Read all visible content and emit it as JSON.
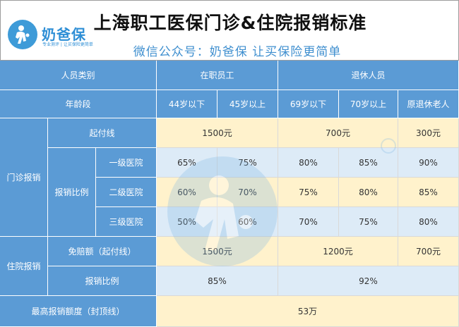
{
  "header": {
    "title": "上海职工医保门诊&住院报销标准",
    "subtitle": "微信公众号：奶爸保   让买保险更简单",
    "logo_name": "奶爸保",
    "logo_tagline": "专业测评 | 让买保险更简单"
  },
  "table": {
    "person_type_label": "人员类别",
    "employed_label": "在职员工",
    "retired_label": "退休人员",
    "age_label": "年龄段",
    "ages": [
      "44岁以下",
      "45岁以上",
      "69岁以下",
      "70岁以上",
      "原退休老人"
    ],
    "outpatient": {
      "label": "门诊报销",
      "deductible_label": "起付线",
      "deductible_values": [
        "1500元",
        "700元",
        "300元"
      ],
      "ratio_label": "报销比例",
      "rows": [
        {
          "level": "一级医院",
          "values": [
            "65%",
            "75%",
            "80%",
            "85%",
            "90%"
          ]
        },
        {
          "level": "二级医院",
          "values": [
            "60%",
            "70%",
            "75%",
            "80%",
            "85%"
          ]
        },
        {
          "level": "三级医院",
          "values": [
            "50%",
            "60%",
            "70%",
            "75%",
            "80%"
          ]
        }
      ]
    },
    "inpatient": {
      "label": "住院报销",
      "deductible_label": "免赔额（起付线）",
      "deductible_values": [
        "1500元",
        "1200元",
        "700元"
      ],
      "ratio_label": "报销比例",
      "ratio_values": [
        "85%",
        "92%"
      ]
    },
    "cap_label": "最高报销额度（封顶线）",
    "cap_value": "53万"
  },
  "colors": {
    "header_blue": "#5b9bd5",
    "yellow_cell": "#fff2cc",
    "light_blue_cell": "#ddebf7",
    "title_accent": "#3f8fcf"
  }
}
